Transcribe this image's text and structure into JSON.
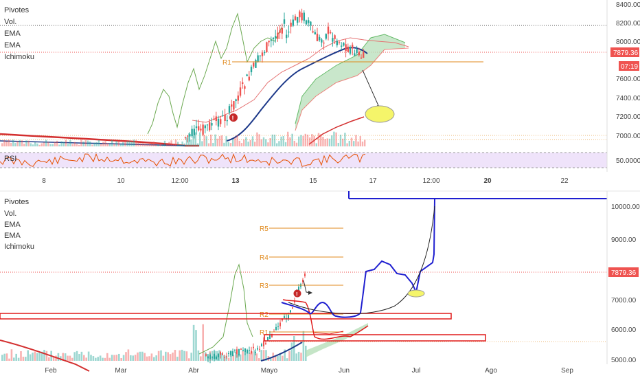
{
  "top_panel": {
    "indicators": [
      "Pivotes",
      "Vol.",
      "EMA",
      "EMA",
      "Ichimoku"
    ],
    "rsi_label": "RSI",
    "rsi_value": "50.0000",
    "price_ticks": [
      "8400.00",
      "8200.00",
      "8000.00",
      "7600.00",
      "7400.00",
      "7200.00",
      "7000.00"
    ],
    "price_badge": "7879.36",
    "countdown_badge": "07:19",
    "pivot_label": "R1",
    "x_ticks": [
      "8",
      "10",
      "12:00",
      "13",
      "15",
      "17",
      "12:00",
      "20",
      "22"
    ]
  },
  "bottom_panel": {
    "indicators": [
      "Pivotes",
      "Vol.",
      "EMA",
      "EMA",
      "Ichimoku"
    ],
    "price_ticks": [
      "10000.00",
      "9000.00",
      "8000.00",
      "7000.00",
      "6000.00",
      "5000.00"
    ],
    "price_badge": "7879.36",
    "pivot_labels": [
      "R5",
      "R4",
      "R3",
      "R2",
      "R1"
    ],
    "x_ticks": [
      "Feb",
      "Mar",
      "Abr",
      "Mayo",
      "Jun",
      "Jul",
      "Ago",
      "Sep"
    ]
  },
  "colors": {
    "up": "#26a69a",
    "down": "#ef5350",
    "ema_blue": "#1e3a8a",
    "cloud": "#b7dfb9",
    "pivot": "#e08a1e",
    "drawing_blue": "#1f1fd0",
    "drawing_red": "#e01b1b",
    "badge_red": "#ef5350",
    "rsi_bg": "#efe3fa",
    "highlight_yellow": "#f5f56a"
  },
  "chart_data": [
    {
      "type": "candlestick",
      "title": "",
      "y_ticks": [
        8400,
        8200,
        8000,
        7600,
        7400,
        7200,
        7000
      ],
      "x_ticks": [
        "8",
        "10",
        "12:00",
        "13",
        "15",
        "17",
        "12:00",
        "20",
        "22"
      ],
      "current_price": 7879.36,
      "indicators": [
        "Pivotes",
        "Vol.",
        "EMA",
        "EMA",
        "Ichimoku",
        "RSI"
      ],
      "pivot_levels": [
        {
          "name": "R1",
          "value": 7800
        }
      ],
      "rsi_level": 50
    },
    {
      "type": "candlestick",
      "title": "",
      "y_ticks": [
        10000,
        9000,
        8000,
        7000,
        6000,
        5000
      ],
      "x_ticks": [
        "Feb",
        "Mar",
        "Abr",
        "Mayo",
        "Jun",
        "Jul",
        "Ago",
        "Sep"
      ],
      "current_price": 7879.36,
      "indicators": [
        "Pivotes",
        "Vol.",
        "EMA",
        "EMA",
        "Ichimoku"
      ],
      "pivot_levels": [
        {
          "name": "R5",
          "value": 9350
        },
        {
          "name": "R4",
          "value": 8400
        },
        {
          "name": "R3",
          "value": 7450
        },
        {
          "name": "R2",
          "value": 6500
        },
        {
          "name": "R1",
          "value": 5850
        }
      ]
    }
  ]
}
